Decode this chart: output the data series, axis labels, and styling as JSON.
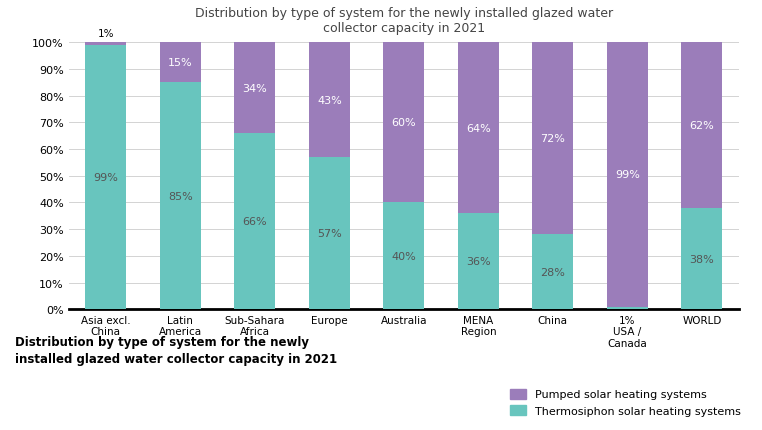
{
  "categories": [
    "Asia excl.\nChina",
    "Latin\nAmerica",
    "Sub-Sahara\nAfrica",
    "Europe",
    "Australia",
    "MENA\nRegion",
    "China",
    "USA /\nCanada",
    "WORLD"
  ],
  "usa_canada_label": "1%\nUSA /\nCanada",
  "thermosiphon": [
    99,
    85,
    66,
    57,
    40,
    36,
    28,
    1,
    38
  ],
  "pumped": [
    1,
    15,
    34,
    43,
    60,
    64,
    72,
    99,
    62
  ],
  "thermosiphon_color": "#68c5be",
  "pumped_color": "#9b7dba",
  "title": "Distribution by type of system for the newly installed glazed water\ncollector capacity in 2021",
  "background_color": "#ffffff",
  "legend_labels": [
    "Pumped solar heating systems",
    "Thermosiphon solar heating systems"
  ],
  "bottom_title": "Distribution by type of system for the newly\ninstalled glazed water collector capacity in 2021",
  "ylim": [
    0,
    100
  ],
  "yticks": [
    0,
    10,
    20,
    30,
    40,
    50,
    60,
    70,
    80,
    90,
    100
  ],
  "ytick_labels": [
    "0%",
    "10%",
    "20%",
    "30%",
    "40%",
    "50%",
    "60%",
    "70%",
    "80%",
    "90%",
    "100%"
  ],
  "label_color_dark": "#555555",
  "label_color_light": "#ffffff",
  "title_color": "#444444"
}
